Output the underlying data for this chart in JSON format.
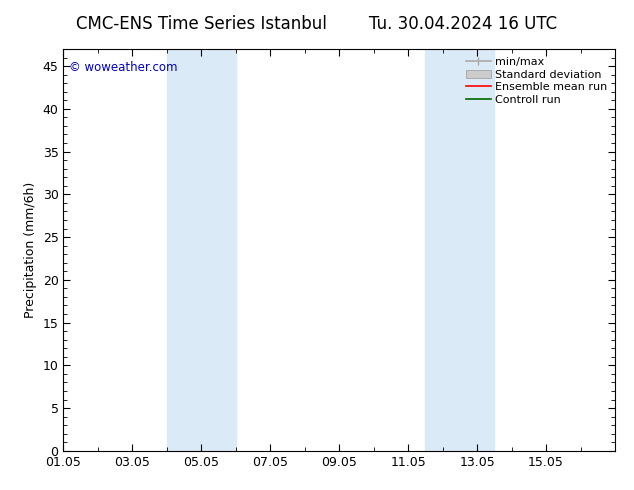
{
  "title_left": "CMC-ENS Time Series Istanbul",
  "title_right": "Tu. 30.04.2024 16 UTC",
  "ylabel": "Precipitation (mm/6h)",
  "watermark": "© woweather.com",
  "watermark_color": "#0000cc",
  "background_color": "#ffffff",
  "plot_bg_color": "#ffffff",
  "ylim": [
    0,
    47
  ],
  "yticks": [
    0,
    5,
    10,
    15,
    20,
    25,
    30,
    35,
    40,
    45
  ],
  "xlim_start": 0,
  "xlim_end": 16,
  "xtick_labels": [
    "01.05",
    "03.05",
    "05.05",
    "07.05",
    "09.05",
    "11.05",
    "13.05",
    "15.05"
  ],
  "xtick_positions": [
    0,
    2,
    4,
    6,
    8,
    10,
    12,
    14
  ],
  "shaded_bands": [
    {
      "x_start": 3.0,
      "x_end": 5.0,
      "color": "#daeaf7"
    },
    {
      "x_start": 10.5,
      "x_end": 12.5,
      "color": "#daeaf7"
    }
  ],
  "legend_entries": [
    {
      "label": "min/max",
      "color": "#aaaaaa",
      "type": "minmax"
    },
    {
      "label": "Standard deviation",
      "color": "#cccccc",
      "type": "fill"
    },
    {
      "label": "Ensemble mean run",
      "color": "#ff0000",
      "type": "line"
    },
    {
      "label": "Controll run",
      "color": "#006600",
      "type": "line"
    }
  ],
  "title_fontsize": 12,
  "legend_fontsize": 8,
  "axis_label_fontsize": 9,
  "tick_fontsize": 9
}
